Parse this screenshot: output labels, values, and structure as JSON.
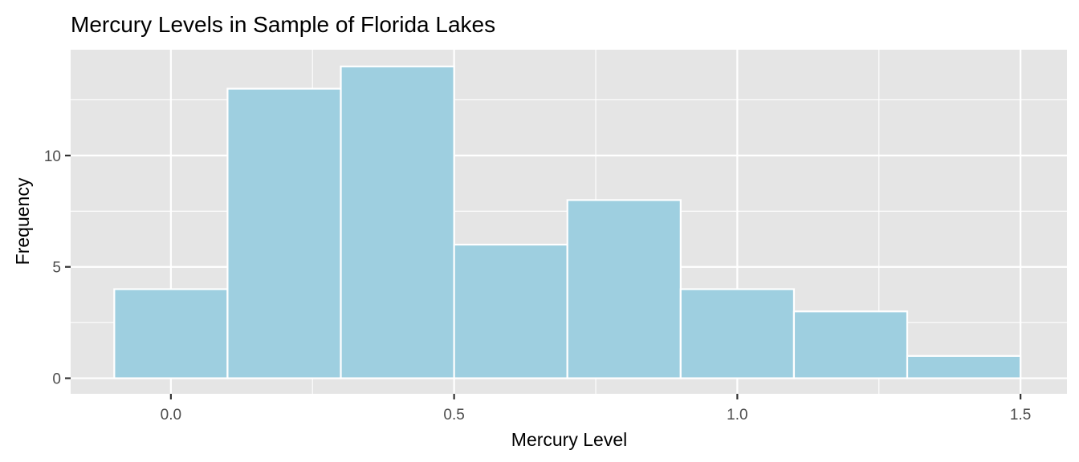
{
  "chart_data": {
    "type": "bar",
    "title": "Mercury Levels in Sample of Florida Lakes",
    "xlabel": "Mercury Level",
    "ylabel": "Frequency",
    "bin_width": 0.2,
    "bins": [
      {
        "from": -0.1,
        "to": 0.1,
        "count": 4
      },
      {
        "from": 0.1,
        "to": 0.3,
        "count": 13
      },
      {
        "from": 0.3,
        "to": 0.5,
        "count": 14
      },
      {
        "from": 0.5,
        "to": 0.7,
        "count": 6
      },
      {
        "from": 0.7,
        "to": 0.9,
        "count": 8
      },
      {
        "from": 0.9,
        "to": 1.1,
        "count": 4
      },
      {
        "from": 1.1,
        "to": 1.3,
        "count": 3
      },
      {
        "from": 1.3,
        "to": 1.5,
        "count": 1
      }
    ],
    "xlim": [
      -0.177,
      1.582
    ],
    "ylim": [
      -0.7,
      14.75
    ],
    "xticks": [
      {
        "v": 0,
        "label": "0.0"
      },
      {
        "v": 0.5,
        "label": "0.5"
      },
      {
        "v": 1.0,
        "label": "1.0"
      },
      {
        "v": 1.5,
        "label": "1.5"
      }
    ],
    "yticks": [
      {
        "v": 0,
        "label": "0"
      },
      {
        "v": 5,
        "label": "5"
      },
      {
        "v": 10,
        "label": "10"
      }
    ],
    "grid": true,
    "colors": {
      "fill": "#9ecfe0",
      "panel": "#e5e5e5",
      "grid": "#ffffff"
    }
  }
}
